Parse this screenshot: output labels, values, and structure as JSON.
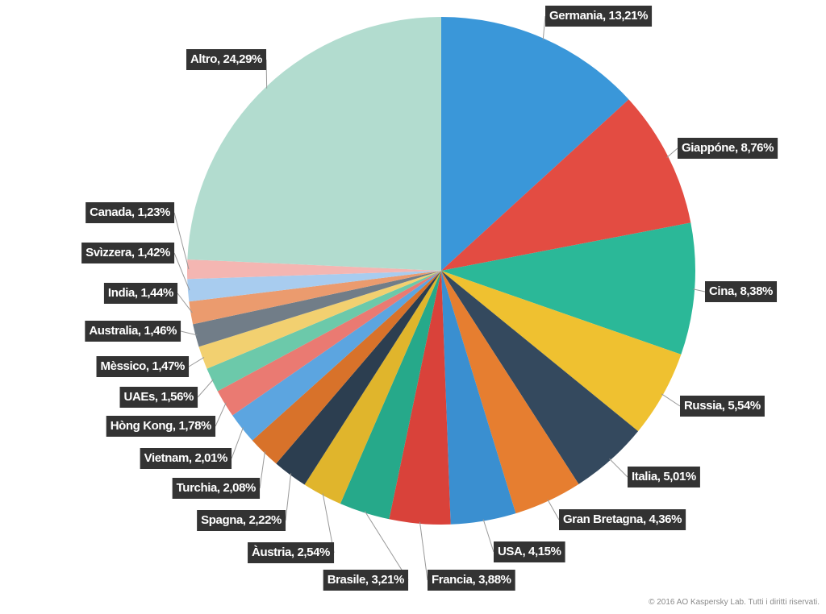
{
  "chart_data": {
    "type": "pie",
    "values": [
      13.21,
      8.76,
      8.38,
      5.54,
      5.01,
      4.36,
      4.15,
      3.88,
      3.21,
      2.54,
      2.22,
      2.08,
      2.01,
      1.78,
      1.56,
      1.47,
      1.46,
      1.44,
      1.42,
      1.23,
      24.29
    ],
    "value_labels": [
      "Germania, 13,21%",
      "Giappóne, 8,76%",
      "Cina, 8,38%",
      "Russia, 5,54%",
      "Italia, 5,01%",
      "Gran Bretagna, 4,36%",
      "USA, 4,15%",
      "Francia, 3,88%",
      "Brasile, 3,21%",
      "Àustria, 2,54%",
      "Spagna, 2,22%",
      "Turchia, 2,08%",
      "Vietnam, 2,01%",
      "Hòng Kong, 1,78%",
      "UAEs, 1,56%",
      "Mèssico, 1,47%",
      "Australia, 1,46%",
      "India, 1,44%",
      "Svìzzera, 1,42%",
      "Canada, 1,23%",
      "Altro, 24,29%"
    ],
    "colors": [
      "#3a97d9",
      "#e34c42",
      "#2bb898",
      "#efc130",
      "#34495e",
      "#e67e30",
      "#3a8fd0",
      "#d9423a",
      "#26a98a",
      "#e0b52c",
      "#2c3e50",
      "#d8722a",
      "#5ca5e0",
      "#ea7a72",
      "#6cc9aa",
      "#f2d070",
      "#717d88",
      "#eb9b6e",
      "#a8ccef",
      "#f4b6b2",
      "#b2dccf"
    ],
    "footnote": "© 2016 AO Kaspersky Lab. Tutti i diritti riservati."
  }
}
